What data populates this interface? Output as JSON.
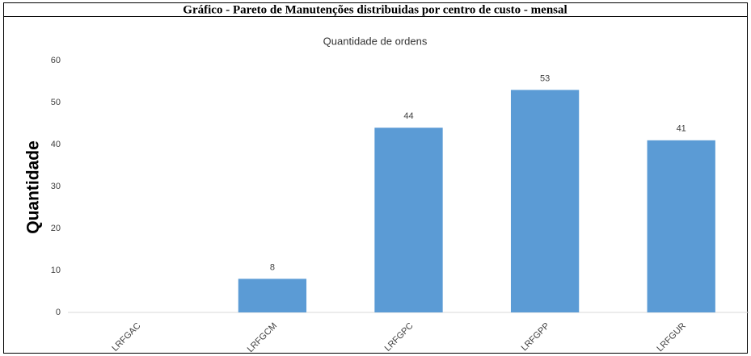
{
  "chart_data": {
    "type": "bar",
    "title": "Gráfico - Pareto de Manutenções distribuidas por centro de custo - mensal",
    "subtitle": "Quantidade de ordens",
    "y_label": "Quantidade",
    "categories": [
      "LRFGAC",
      "LRFGCM",
      "LRFGPC",
      "LRFGPP",
      "LRFGUR"
    ],
    "values": [
      null,
      8,
      44,
      53,
      41
    ],
    "color": "#5b9bd5",
    "ylim": [
      0,
      60
    ],
    "yticks": [
      0,
      10,
      20,
      30,
      40,
      50,
      60
    ],
    "grid": false
  }
}
